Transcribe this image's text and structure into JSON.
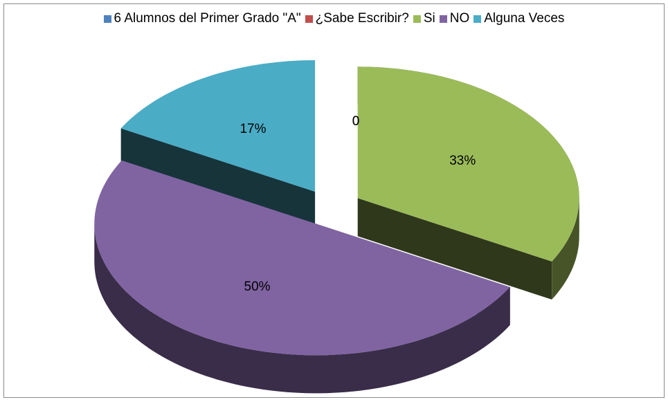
{
  "chart_data": {
    "type": "pie",
    "categories": [
      "6 Alumnos del Primer Grado \"A\"",
      "¿Sabe Escribir?",
      "Si",
      "NO",
      "Alguna Veces"
    ],
    "values": [
      0,
      0,
      33,
      50,
      17
    ],
    "value_labels": [
      "0",
      "0",
      "33%",
      "50%",
      "17%"
    ],
    "colors": [
      "#4f81bd",
      "#c0504d",
      "#9bbb59",
      "#8064a2",
      "#4bacc6"
    ],
    "legend": "top"
  }
}
